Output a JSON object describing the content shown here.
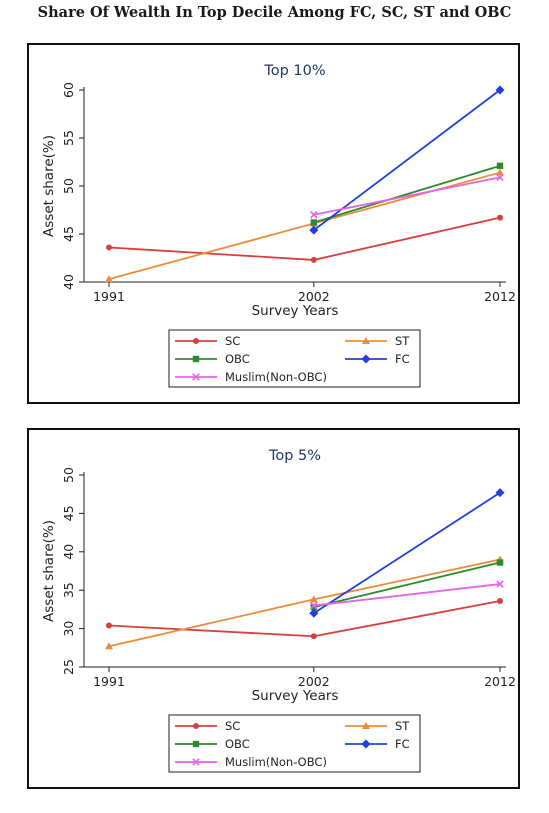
{
  "page_title": "Share Of Wealth In Top Decile Among FC, SC, ST and OBC",
  "chart_data": [
    {
      "type": "line",
      "title": "Top 10%",
      "xlabel": "Survey Years",
      "ylabel": "Asset share(%)",
      "x": [
        1991,
        2002,
        2012
      ],
      "x_ticks": [
        "1991",
        "2002",
        "2012"
      ],
      "ylim": [
        40,
        60
      ],
      "y_ticks": [
        40,
        45,
        50,
        55,
        60
      ],
      "grid": false,
      "legend_position": "bottom",
      "series": [
        {
          "name": "SC",
          "color": "#d6403c",
          "marker": "circle",
          "x": [
            1991,
            2002,
            2012
          ],
          "values": [
            43.6,
            42.3,
            46.7
          ]
        },
        {
          "name": "ST",
          "color": "#ee8b3a",
          "marker": "triangle",
          "x": [
            1991,
            2002,
            2012
          ],
          "values": [
            40.3,
            46.1,
            51.4
          ]
        },
        {
          "name": "OBC",
          "color": "#2d8a2d",
          "marker": "square",
          "x": [
            2002,
            2012
          ],
          "values": [
            46.2,
            52.1
          ]
        },
        {
          "name": "FC",
          "color": "#1f3fe0",
          "marker": "diamond",
          "x": [
            2002,
            2012
          ],
          "values": [
            45.4,
            60.0
          ]
        },
        {
          "name": "Muslim(Non-OBC)",
          "color": "#e463e8",
          "marker": "cross",
          "x": [
            2002,
            2012
          ],
          "values": [
            47.0,
            50.9
          ]
        }
      ]
    },
    {
      "type": "line",
      "title": "Top 5%",
      "xlabel": "Survey Years",
      "ylabel": "Asset share(%)",
      "x": [
        1991,
        2002,
        2012
      ],
      "x_ticks": [
        "1991",
        "2002",
        "2012"
      ],
      "ylim": [
        25,
        50
      ],
      "y_ticks": [
        25,
        30,
        35,
        40,
        45,
        50
      ],
      "grid": false,
      "legend_position": "bottom",
      "series": [
        {
          "name": "SC",
          "color": "#d6403c",
          "marker": "circle",
          "x": [
            1991,
            2002,
            2012
          ],
          "values": [
            30.4,
            29.0,
            33.6
          ]
        },
        {
          "name": "ST",
          "color": "#ee8b3a",
          "marker": "triangle",
          "x": [
            1991,
            2002,
            2012
          ],
          "values": [
            27.7,
            33.8,
            39.0
          ]
        },
        {
          "name": "OBC",
          "color": "#2d8a2d",
          "marker": "square",
          "x": [
            2002,
            2012
          ],
          "values": [
            32.8,
            38.6
          ]
        },
        {
          "name": "FC",
          "color": "#1f3fe0",
          "marker": "diamond",
          "x": [
            2002,
            2012
          ],
          "values": [
            32.0,
            47.7
          ]
        },
        {
          "name": "Muslim(Non-OBC)",
          "color": "#e463e8",
          "marker": "cross",
          "x": [
            2002,
            2012
          ],
          "values": [
            33.0,
            35.8
          ]
        }
      ]
    }
  ]
}
